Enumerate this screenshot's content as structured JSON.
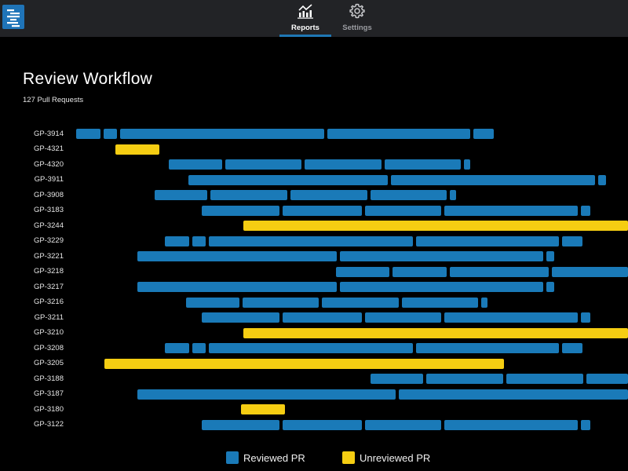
{
  "nav": {
    "tabs": [
      {
        "label": "Reports",
        "icon": "chart-icon",
        "active": true
      },
      {
        "label": "Settings",
        "icon": "gear-icon",
        "active": false
      }
    ]
  },
  "header": {
    "title": "Review Workflow",
    "subtitle": "127 Pull Requests"
  },
  "colors": {
    "reviewed": "#1a7ab8",
    "unreviewed": "#f5cd12",
    "accent": "#1f77b4"
  },
  "legend": {
    "reviewed_label": "Reviewed PR",
    "unreviewed_label": "Unreviewed PR"
  },
  "pull_requests": [
    {
      "id": "GP-3914",
      "status": "reviewed"
    },
    {
      "id": "GP-4321",
      "status": "unreviewed"
    },
    {
      "id": "GP-4320",
      "status": "reviewed"
    },
    {
      "id": "GP-3911",
      "status": "reviewed"
    },
    {
      "id": "GP-3908",
      "status": "reviewed"
    },
    {
      "id": "GP-3183",
      "status": "reviewed"
    },
    {
      "id": "GP-3244",
      "status": "unreviewed"
    },
    {
      "id": "GP-3229",
      "status": "reviewed"
    },
    {
      "id": "GP-3221",
      "status": "reviewed"
    },
    {
      "id": "GP-3218",
      "status": "reviewed"
    },
    {
      "id": "GP-3217",
      "status": "reviewed"
    },
    {
      "id": "GP-3216",
      "status": "reviewed"
    },
    {
      "id": "GP-3211",
      "status": "reviewed"
    },
    {
      "id": "GP-3210",
      "status": "unreviewed"
    },
    {
      "id": "GP-3208",
      "status": "reviewed"
    },
    {
      "id": "GP-3205",
      "status": "unreviewed"
    },
    {
      "id": "GP-3188",
      "status": "reviewed"
    },
    {
      "id": "GP-3187",
      "status": "reviewed"
    },
    {
      "id": "GP-3180",
      "status": "unreviewed"
    },
    {
      "id": "GP-3122",
      "status": "reviewed"
    }
  ]
}
